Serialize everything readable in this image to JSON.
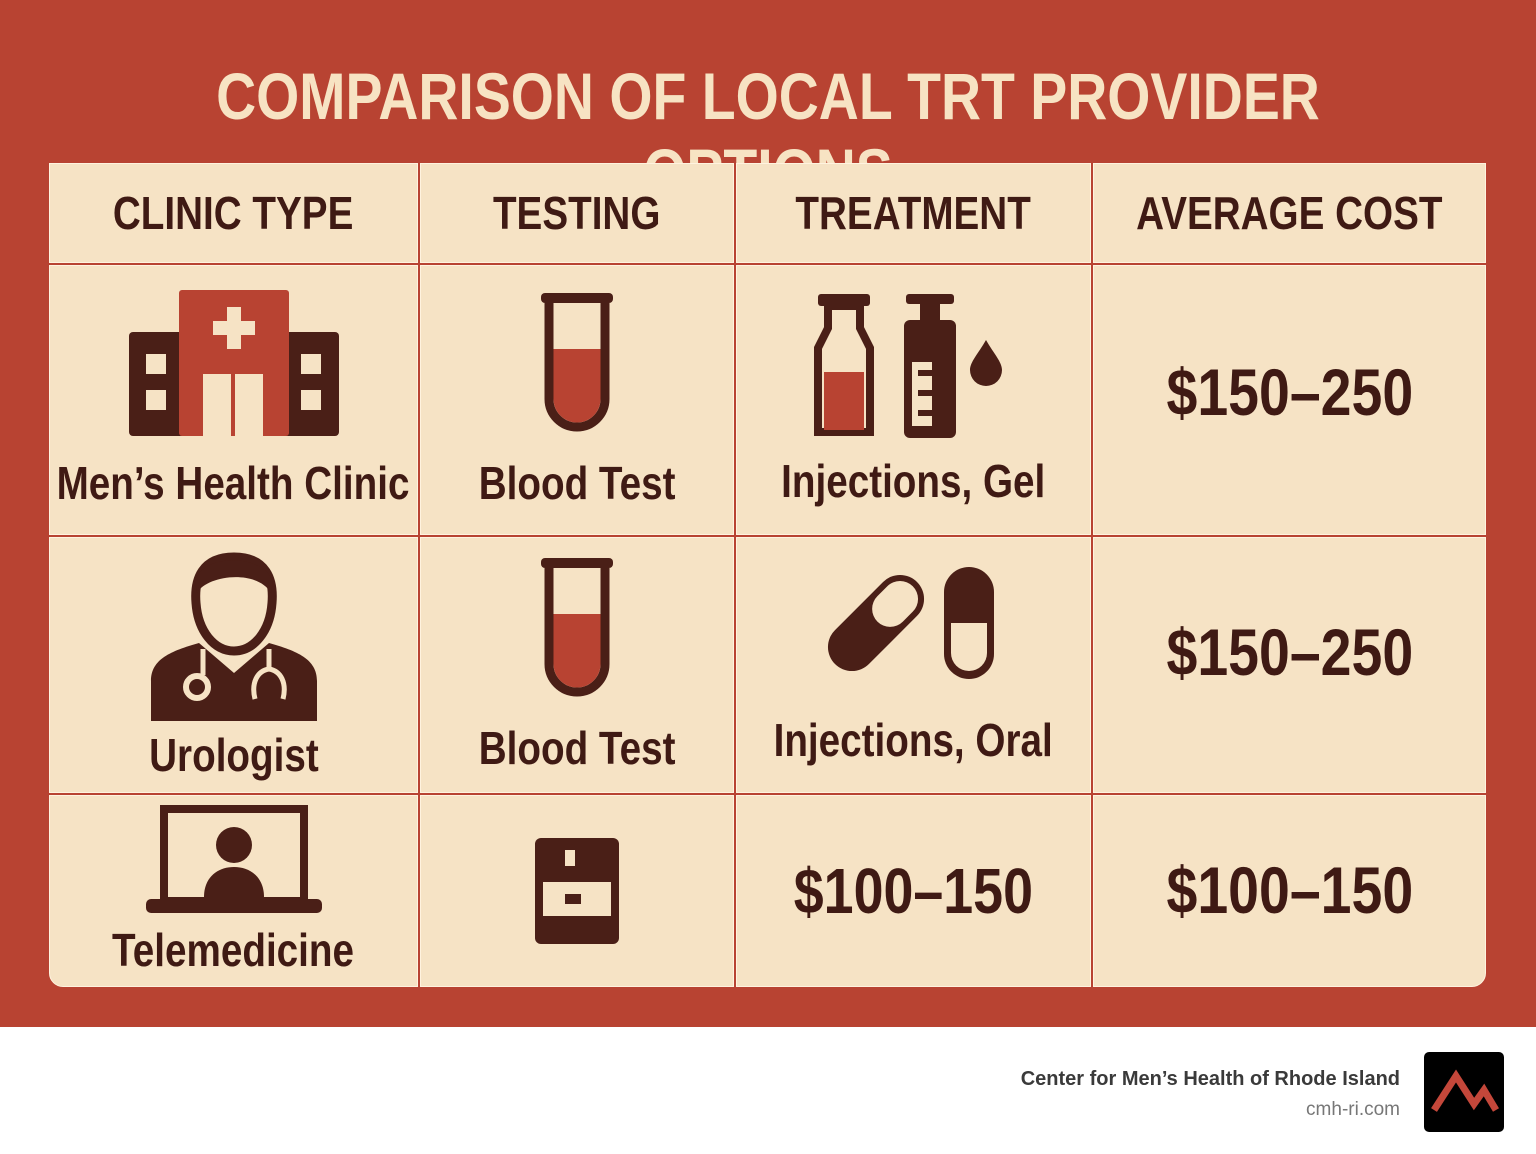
{
  "title": "COMPARISON OF LOCAL TRT PROVIDER OPTIONS",
  "headers": [
    "CLINIC TYPE",
    "TESTING",
    "TREATMENT",
    "AVERAGE COST"
  ],
  "rows": [
    {
      "clinic_type": "Men’s Health Clinic",
      "clinic_icon": "hospital-icon",
      "testing": "Blood Test",
      "testing_icon": "test-tube-icon",
      "treatment": "Injections, Gel",
      "treatment_icon": "vial-gel-icon",
      "cost": "$150–250"
    },
    {
      "clinic_type": "Urologist",
      "clinic_icon": "doctor-icon",
      "testing": "Blood Test",
      "testing_icon": "test-tube-icon",
      "treatment": "Injections, Oral",
      "treatment_icon": "pill-icon",
      "cost": "$150–250"
    },
    {
      "clinic_type": "Telemedicine",
      "clinic_icon": "laptop-video-icon",
      "testing_icon": "test-kit-icon",
      "treatment": "$100–150",
      "cost": "$100–150"
    }
  ],
  "footer": {
    "name": "Center for Men’s Health of Rhode Island",
    "url": "cmh-ri.com"
  },
  "colors": {
    "background": "#b84332",
    "cell": "#f6e3c5",
    "text": "#3f1a14",
    "title": "#f7e3c3"
  }
}
